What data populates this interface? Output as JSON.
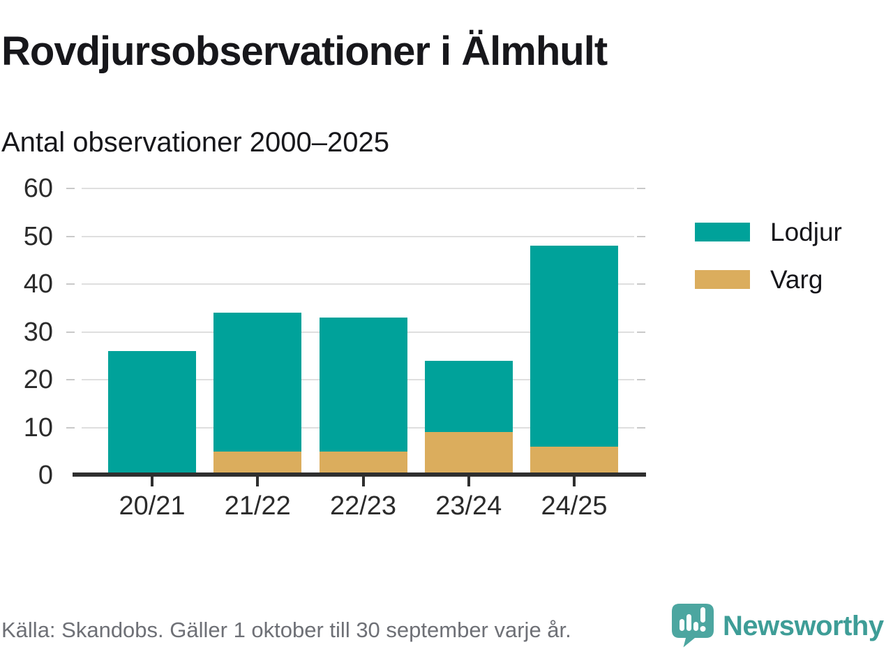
{
  "header": {
    "title": "Rovdjursobservationer i Älmhult",
    "subtitle": "Antal observationer 2000–2025"
  },
  "chart_data": {
    "type": "bar",
    "stacked": true,
    "title": "Rovdjursobservationer i Älmhult",
    "subtitle": "Antal observationer 2000–2025",
    "categories": [
      "20/21",
      "21/22",
      "22/23",
      "23/24",
      "24/25"
    ],
    "series": [
      {
        "name": "Lodjur",
        "color": "#00A29A",
        "values": [
          26,
          29,
          28,
          15,
          42
        ]
      },
      {
        "name": "Varg",
        "color": "#DBAD5D",
        "values": [
          0,
          5,
          5,
          9,
          6
        ]
      }
    ],
    "stack_order_bottom_up": [
      "Varg",
      "Lodjur"
    ],
    "stack_totals": [
      26,
      34,
      33,
      24,
      48
    ],
    "xlabel": "",
    "ylabel": "",
    "ylim": [
      0,
      60
    ],
    "yticks": [
      0,
      10,
      20,
      30,
      40,
      50,
      60
    ],
    "grid": true,
    "legend_position": "right",
    "colors": {
      "grid": "#DFDFDF",
      "grid_stub": "#C9C9C9",
      "axis": "#2F2F2F",
      "tick_label": "#2B2B2B"
    }
  },
  "legend": {
    "items": [
      {
        "label": "Lodjur",
        "color": "#00A29A"
      },
      {
        "label": "Varg",
        "color": "#DBAD5D"
      }
    ]
  },
  "footer": {
    "source": "Källa: Skandobs. Gäller 1 oktober till 30 september varje år.",
    "brand": "Newsworthy",
    "brand_color": "#3E9D97",
    "logo_icon": "newsworthy-speech-bubble-chart-icon"
  }
}
